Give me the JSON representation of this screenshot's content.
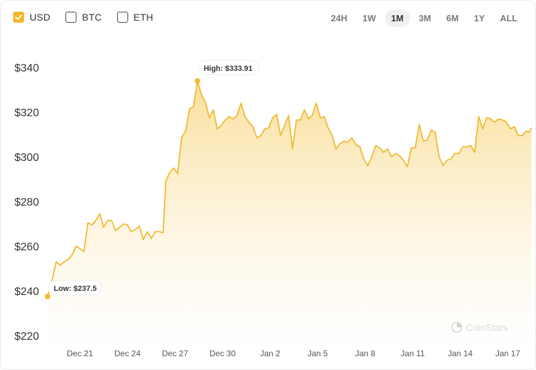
{
  "toggles": [
    {
      "label": "USD",
      "checked": true
    },
    {
      "label": "BTC",
      "checked": false
    },
    {
      "label": "ETH",
      "checked": false
    }
  ],
  "ranges": [
    "24H",
    "1W",
    "1M",
    "3M",
    "6M",
    "1Y",
    "ALL"
  ],
  "active_range": "1M",
  "watermark": "CoinStats",
  "colors": {
    "accent": "#f3b82b",
    "line": "#f0b92e"
  },
  "chart_data": {
    "type": "area",
    "ylim": [
      220,
      340
    ],
    "y_ticks": [
      220,
      240,
      260,
      280,
      300,
      320,
      340
    ],
    "y_tick_labels": [
      "$220",
      "$240",
      "$260",
      "$280",
      "$300",
      "$320",
      "$340"
    ],
    "x_ticks": [
      "Dec 21",
      "Dec 24",
      "Dec 27",
      "Dec 30",
      "Jan 2",
      "Jan 5",
      "Jan 8",
      "Jan 11",
      "Jan 14",
      "Jan 17"
    ],
    "x_tick_dates": [
      "2023-12-21",
      "2023-12-24",
      "2023-12-27",
      "2023-12-30",
      "2024-01-02",
      "2024-01-05",
      "2024-01-08",
      "2024-01-11",
      "2024-01-14",
      "2024-01-17"
    ],
    "grid": false,
    "series": [
      {
        "points": [
          [
            "2023-12-18T23:00",
            237.5
          ],
          [
            "2023-12-19T06:00",
            245
          ],
          [
            "2023-12-19T12:00",
            253
          ],
          [
            "2023-12-19T18:00",
            251.5
          ],
          [
            "2023-12-20T00:00",
            253
          ],
          [
            "2023-12-20T06:00",
            254
          ],
          [
            "2023-12-20T12:00",
            256
          ],
          [
            "2023-12-20T18:00",
            260
          ],
          [
            "2023-12-21T00:00",
            259
          ],
          [
            "2023-12-21T06:00",
            257.5
          ],
          [
            "2023-12-21T12:00",
            270.5
          ],
          [
            "2023-12-21T18:00",
            269.5
          ],
          [
            "2023-12-22T00:00",
            271.5
          ],
          [
            "2023-12-22T06:00",
            274.5
          ],
          [
            "2023-12-22T12:00",
            268.5
          ],
          [
            "2023-12-22T18:00",
            271.5
          ],
          [
            "2023-12-23T00:00",
            271.5
          ],
          [
            "2023-12-23T06:00",
            267
          ],
          [
            "2023-12-23T12:00",
            268.5
          ],
          [
            "2023-12-23T18:00",
            270
          ],
          [
            "2023-12-24T00:00",
            269.5
          ],
          [
            "2023-12-24T06:00",
            266.5
          ],
          [
            "2023-12-24T12:00",
            267.5
          ],
          [
            "2023-12-24T18:00",
            269
          ],
          [
            "2023-12-25T00:00",
            263
          ],
          [
            "2023-12-25T06:00",
            266.5
          ],
          [
            "2023-12-25T12:00",
            263.5
          ],
          [
            "2023-12-25T18:00",
            266.5
          ],
          [
            "2023-12-26T00:00",
            266.5
          ],
          [
            "2023-12-26T06:00",
            266
          ],
          [
            "2023-12-26T10:00",
            289
          ],
          [
            "2023-12-26T16:00",
            293
          ],
          [
            "2023-12-26T22:00",
            295
          ],
          [
            "2023-12-27T04:00",
            292.5
          ],
          [
            "2023-12-27T10:00",
            308.5
          ],
          [
            "2023-12-27T16:00",
            311.5
          ],
          [
            "2023-12-27T22:00",
            321.5
          ],
          [
            "2023-12-28T04:00",
            322.5
          ],
          [
            "2023-12-28T10:00",
            333.91
          ],
          [
            "2023-12-28T16:00",
            328
          ],
          [
            "2023-12-28T22:00",
            324.5
          ],
          [
            "2023-12-29T04:00",
            317.5
          ],
          [
            "2023-12-29T10:00",
            321
          ],
          [
            "2023-12-29T16:00",
            312.5
          ],
          [
            "2023-12-29T22:00",
            314
          ],
          [
            "2023-12-30T04:00",
            316.5
          ],
          [
            "2023-12-30T10:00",
            318
          ],
          [
            "2023-12-30T16:00",
            317
          ],
          [
            "2023-12-30T22:00",
            318.5
          ],
          [
            "2023-12-31T04:00",
            324
          ],
          [
            "2023-12-31T10:00",
            318
          ],
          [
            "2023-12-31T16:00",
            315.5
          ],
          [
            "2023-12-31T22:00",
            313.5
          ],
          [
            "2024-01-01T04:00",
            308.5
          ],
          [
            "2024-01-01T10:00",
            309.5
          ],
          [
            "2024-01-01T16:00",
            312.5
          ],
          [
            "2024-01-01T22:00",
            313
          ],
          [
            "2024-01-02T04:00",
            317.5
          ],
          [
            "2024-01-02T10:00",
            319
          ],
          [
            "2024-01-02T16:00",
            309.5
          ],
          [
            "2024-01-02T22:00",
            314
          ],
          [
            "2024-01-03T04:00",
            318.5
          ],
          [
            "2024-01-03T10:00",
            303.5
          ],
          [
            "2024-01-03T16:00",
            316.5
          ],
          [
            "2024-01-03T22:00",
            316.5
          ],
          [
            "2024-01-04T04:00",
            321
          ],
          [
            "2024-01-04T10:00",
            317
          ],
          [
            "2024-01-04T16:00",
            318.5
          ],
          [
            "2024-01-04T22:00",
            324
          ],
          [
            "2024-01-05T04:00",
            317.5
          ],
          [
            "2024-01-05T10:00",
            318
          ],
          [
            "2024-01-05T16:00",
            313
          ],
          [
            "2024-01-05T22:00",
            309.5
          ],
          [
            "2024-01-06T04:00",
            303.5
          ],
          [
            "2024-01-06T10:00",
            306
          ],
          [
            "2024-01-06T16:00",
            307
          ],
          [
            "2024-01-06T22:00",
            306.5
          ],
          [
            "2024-01-07T04:00",
            308.5
          ],
          [
            "2024-01-07T10:00",
            305.5
          ],
          [
            "2024-01-07T16:00",
            304.5
          ],
          [
            "2024-01-07T22:00",
            299
          ],
          [
            "2024-01-08T04:00",
            296
          ],
          [
            "2024-01-08T10:00",
            300
          ],
          [
            "2024-01-08T16:00",
            305
          ],
          [
            "2024-01-08T22:00",
            304
          ],
          [
            "2024-01-09T04:00",
            302
          ],
          [
            "2024-01-09T10:00",
            303.5
          ],
          [
            "2024-01-09T16:00",
            300
          ],
          [
            "2024-01-09T22:00",
            301.5
          ],
          [
            "2024-01-10T04:00",
            300.5
          ],
          [
            "2024-01-10T10:00",
            298.5
          ],
          [
            "2024-01-10T16:00",
            295.5
          ],
          [
            "2024-01-10T22:00",
            304
          ],
          [
            "2024-01-11T04:00",
            304
          ],
          [
            "2024-01-11T10:00",
            314.5
          ],
          [
            "2024-01-11T16:00",
            307
          ],
          [
            "2024-01-11T22:00",
            307.5
          ],
          [
            "2024-01-12T04:00",
            312
          ],
          [
            "2024-01-12T10:00",
            311
          ],
          [
            "2024-01-12T16:00",
            300
          ],
          [
            "2024-01-12T22:00",
            296
          ],
          [
            "2024-01-13T04:00",
            298.5
          ],
          [
            "2024-01-13T10:00",
            299
          ],
          [
            "2024-01-13T16:00",
            301.5
          ],
          [
            "2024-01-13T22:00",
            301.5
          ],
          [
            "2024-01-14T04:00",
            304.5
          ],
          [
            "2024-01-14T10:00",
            304.5
          ],
          [
            "2024-01-14T16:00",
            305
          ],
          [
            "2024-01-14T22:00",
            302
          ],
          [
            "2024-01-15T04:00",
            318
          ],
          [
            "2024-01-15T10:00",
            312.5
          ],
          [
            "2024-01-15T16:00",
            317.5
          ],
          [
            "2024-01-15T22:00",
            317
          ],
          [
            "2024-01-16T04:00",
            315.5
          ],
          [
            "2024-01-16T10:00",
            317
          ],
          [
            "2024-01-16T16:00",
            316.5
          ],
          [
            "2024-01-16T22:00",
            315.5
          ],
          [
            "2024-01-17T04:00",
            312.5
          ],
          [
            "2024-01-17T10:00",
            313.5
          ],
          [
            "2024-01-17T16:00",
            309.5
          ],
          [
            "2024-01-17T22:00",
            309.5
          ],
          [
            "2024-01-18T04:00",
            311.5
          ],
          [
            "2024-01-18T08:00",
            311
          ],
          [
            "2024-01-18T12:00",
            313
          ]
        ]
      }
    ],
    "annotations": [
      {
        "text": "High: $333.91",
        "date": "2023-12-28T10:00",
        "value": 333.91
      },
      {
        "text": "Low: $237.5",
        "date": "2023-12-18T23:00",
        "value": 237.5
      }
    ]
  }
}
